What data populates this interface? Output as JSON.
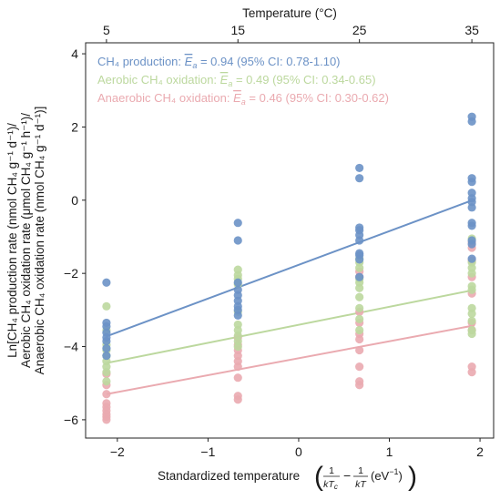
{
  "chart_data": {
    "type": "scatter",
    "top_axis": {
      "label": "Temperature (°C)",
      "ticks": [
        5,
        15,
        25,
        35
      ]
    },
    "xlabel": "Standardized temperature",
    "xlabel_math": {
      "open": "(",
      "n1": "1",
      "d1": "kT",
      "d1_sub": "c",
      "minus": "−",
      "n2": "1",
      "d2": "kT",
      "unit": "(eV",
      "unit_sup": "−1",
      "unit_close": ")",
      "close": ")"
    },
    "ylabel_lines": [
      "Ln[CH₄ production rate (nmol CH₄ g⁻¹ d⁻¹)/",
      "Aerobic CH₄ oxidation rate (μmol CH₄ g⁻¹ h⁻¹)/",
      "Anaerobic CH₄ oxidation rate (nmol CH₄ g⁻¹ d⁻¹)]"
    ],
    "xlim": [
      -2.35,
      2.15
    ],
    "ylim": [
      -6.5,
      4.3
    ],
    "x_ticks": [
      -2,
      -1,
      0,
      1,
      2
    ],
    "x_tick_labels": [
      "−2",
      "−1",
      "0",
      "1",
      "2"
    ],
    "y_ticks": [
      4,
      2,
      0,
      -2,
      -4,
      -6
    ],
    "y_tick_labels": [
      "4",
      "2",
      "0",
      "−2",
      "−4",
      "−6"
    ],
    "legend_position": "top-left",
    "series": [
      {
        "name": "CH₄ production",
        "legend_text": "CH₄ production: Ēₐ = 0.94 (95% CI: 0.78-1.10)",
        "color": "#6c92c6",
        "fit": {
          "x": [
            -2.12,
            1.94
          ],
          "y": [
            -3.72,
            0.02
          ]
        },
        "points": {
          "x": [
            -2.12,
            -2.12,
            -2.12,
            -2.12,
            -2.12,
            -2.12,
            -2.12,
            -2.12,
            -0.67,
            -0.67,
            -0.67,
            -0.67,
            -0.67,
            -0.67,
            -0.67,
            -0.67,
            -0.67,
            0.67,
            0.67,
            0.67,
            0.67,
            0.67,
            0.67,
            0.67,
            0.67,
            0.67,
            0.67,
            1.91,
            1.91,
            1.91,
            1.91,
            1.91,
            1.91,
            1.91,
            1.91,
            1.91,
            1.91,
            1.91,
            1.91,
            1.91
          ],
          "y": [
            -2.25,
            -3.35,
            -3.45,
            -3.62,
            -3.75,
            -3.85,
            -4.05,
            -4.25,
            -0.62,
            -1.1,
            -2.25,
            -2.45,
            -2.6,
            -2.75,
            -2.9,
            -3.0,
            -3.15,
            0.88,
            0.6,
            -0.75,
            -0.82,
            -0.95,
            -1.1,
            -1.45,
            -1.5,
            -1.62,
            -2.1,
            2.28,
            2.15,
            0.6,
            0.5,
            0.2,
            0.05,
            -0.05,
            -0.2,
            -0.62,
            -0.7,
            -1.1,
            -1.2,
            -1.6
          ]
        }
      },
      {
        "name": "Aerobic CH₄ oxidation",
        "legend_text": "Aerobic CH₄ oxidation: Ēₐ = 0.49 (95% CI: 0.34-0.65)",
        "color": "#bcd89e",
        "fit": {
          "x": [
            -2.12,
            1.94
          ],
          "y": [
            -4.45,
            -2.45
          ]
        },
        "points": {
          "x": [
            -2.12,
            -2.12,
            -2.12,
            -2.12,
            -2.12,
            -2.12,
            -2.12,
            -2.12,
            -2.12,
            -0.67,
            -0.67,
            -0.67,
            -0.67,
            -0.67,
            -0.67,
            -0.67,
            -0.67,
            -0.67,
            -0.67,
            0.67,
            0.67,
            0.67,
            0.67,
            0.67,
            0.67,
            0.67,
            0.67,
            0.67,
            0.67,
            1.91,
            1.91,
            1.91,
            1.91,
            1.91,
            1.91,
            1.91,
            1.91,
            1.91,
            1.91,
            1.91
          ],
          "y": [
            -2.9,
            -3.55,
            -3.95,
            -4.1,
            -4.25,
            -4.4,
            -4.55,
            -4.7,
            -4.95,
            -1.9,
            -2.05,
            -2.15,
            -2.3,
            -3.05,
            -3.4,
            -3.55,
            -3.7,
            -3.85,
            -4.0,
            -1.6,
            -1.7,
            -1.85,
            -2.15,
            -2.25,
            -2.4,
            -2.65,
            -2.95,
            -3.25,
            -3.55,
            -1.05,
            -1.7,
            -1.85,
            -2.0,
            -2.35,
            -2.45,
            -2.95,
            -3.1,
            -3.3,
            -3.55,
            -3.65
          ]
        }
      },
      {
        "name": "Anaerobic CH₄ oxidation",
        "legend_text": "Anaerobic CH₄ oxidation: Ēₐ = 0.46 (95% CI: 0.30-0.62)",
        "color": "#eaaab0",
        "fit": {
          "x": [
            -2.12,
            1.94
          ],
          "y": [
            -5.3,
            -3.42
          ]
        },
        "points": {
          "x": [
            -2.12,
            -2.12,
            -2.12,
            -2.12,
            -2.12,
            -2.12,
            -2.12,
            -2.12,
            -2.12,
            -0.67,
            -0.67,
            -0.67,
            -0.67,
            -0.67,
            -0.67,
            -0.67,
            -0.67,
            -0.67,
            0.67,
            0.67,
            0.67,
            0.67,
            0.67,
            0.67,
            0.67,
            0.67,
            0.67,
            0.67,
            1.91,
            1.91,
            1.91,
            1.91,
            1.91,
            1.91,
            1.91,
            1.91,
            1.91
          ],
          "y": [
            -4.75,
            -5.05,
            -5.3,
            -5.55,
            -5.65,
            -5.75,
            -5.85,
            -5.92,
            -6.0,
            -3.75,
            -3.95,
            -4.1,
            -4.25,
            -4.4,
            -4.55,
            -4.85,
            -5.35,
            -5.45,
            -1.95,
            -2.1,
            -3.05,
            -3.35,
            -3.65,
            -3.8,
            -4.1,
            -4.55,
            -4.95,
            -5.05,
            -1.15,
            -1.3,
            -1.65,
            -2.1,
            -2.55,
            -3.35,
            -3.55,
            -4.55,
            -4.7
          ]
        }
      }
    ]
  }
}
